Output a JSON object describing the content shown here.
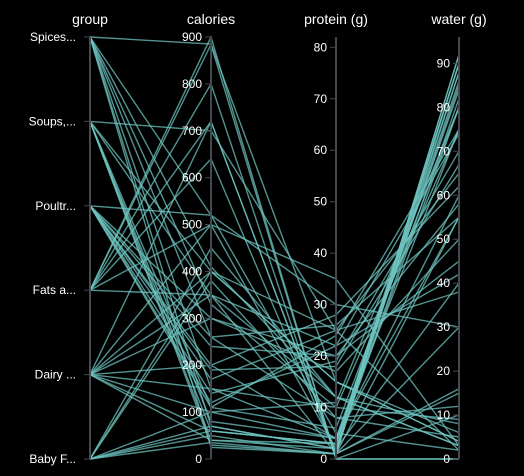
{
  "colors": {
    "background": "#000000",
    "line": "#6ec4c0",
    "axis": "#444a52",
    "text": "#ffffff"
  },
  "chart_data": {
    "type": "parallel-coordinates",
    "dimensions": [
      {
        "key": "group",
        "label": "group",
        "kind": "categorical",
        "categories": [
          "Spices...",
          "Soups,...",
          "Poultr...",
          "Fats a...",
          "Dairy ...",
          "Baby F..."
        ]
      },
      {
        "key": "calories",
        "label": "calories",
        "kind": "numeric",
        "range": [
          0,
          900
        ],
        "ticks": [
          0,
          100,
          200,
          300,
          400,
          500,
          600,
          700,
          800,
          900
        ]
      },
      {
        "key": "protein",
        "label": "protein (g)",
        "kind": "numeric",
        "range": [
          0,
          82
        ],
        "ticks": [
          0,
          10,
          20,
          30,
          40,
          50,
          60,
          70,
          80
        ]
      },
      {
        "key": "water",
        "label": "water (g)",
        "kind": "numeric",
        "range": [
          0,
          96
        ],
        "ticks": [
          0,
          10,
          20,
          30,
          40,
          50,
          60,
          70,
          80,
          90
        ]
      }
    ],
    "rows": [
      {
        "group": "Spices...",
        "calories": 885,
        "protein": 15,
        "water": 6
      },
      {
        "group": "Spices...",
        "calories": 330,
        "protein": 10,
        "water": 9
      },
      {
        "group": "Spices...",
        "calories": 260,
        "protein": 8,
        "water": 12
      },
      {
        "group": "Spices...",
        "calories": 25,
        "protein": 1,
        "water": 92
      },
      {
        "group": "Spices...",
        "calories": 520,
        "protein": 5,
        "water": 2
      },
      {
        "group": "Spices...",
        "calories": 410,
        "protein": 12,
        "water": 8
      },
      {
        "group": "Spices...",
        "calories": 70,
        "protein": 2,
        "water": 80
      },
      {
        "group": "Spices...",
        "calories": 150,
        "protein": 4,
        "water": 55
      },
      {
        "group": "Soups,...",
        "calories": 40,
        "protein": 2,
        "water": 90
      },
      {
        "group": "Soups,...",
        "calories": 60,
        "protein": 3,
        "water": 86
      },
      {
        "group": "Soups,...",
        "calories": 80,
        "protein": 4,
        "water": 84
      },
      {
        "group": "Soups,...",
        "calories": 350,
        "protein": 12,
        "water": 3
      },
      {
        "group": "Soups,...",
        "calories": 700,
        "protein": 25,
        "water": 2
      },
      {
        "group": "Soups,...",
        "calories": 30,
        "protein": 1,
        "water": 92
      },
      {
        "group": "Soups,...",
        "calories": 110,
        "protein": 6,
        "water": 80
      },
      {
        "group": "Soups,...",
        "calories": 400,
        "protein": 15,
        "water": 4
      },
      {
        "group": "Poultr...",
        "calories": 170,
        "protein": 25,
        "water": 65
      },
      {
        "group": "Poultr...",
        "calories": 240,
        "protein": 20,
        "water": 58
      },
      {
        "group": "Poultr...",
        "calories": 120,
        "protein": 22,
        "water": 74
      },
      {
        "group": "Poultr...",
        "calories": 200,
        "protein": 28,
        "water": 62
      },
      {
        "group": "Poultr...",
        "calories": 300,
        "protein": 17,
        "water": 50
      },
      {
        "group": "Poultr...",
        "calories": 140,
        "protein": 19,
        "water": 70
      },
      {
        "group": "Poultr...",
        "calories": 520,
        "protein": 30,
        "water": 30
      },
      {
        "group": "Poultr...",
        "calories": 190,
        "protein": 18,
        "water": 67
      },
      {
        "group": "Poultr...",
        "calories": 110,
        "protein": 24,
        "water": 75
      },
      {
        "group": "Poultr...",
        "calories": 260,
        "protein": 26,
        "water": 55
      },
      {
        "group": "Fats a...",
        "calories": 884,
        "protein": 0,
        "water": 0
      },
      {
        "group": "Fats a...",
        "calories": 720,
        "protein": 1,
        "water": 15
      },
      {
        "group": "Fats a...",
        "calories": 900,
        "protein": 0,
        "water": 0
      },
      {
        "group": "Fats a...",
        "calories": 640,
        "protein": 1,
        "water": 30
      },
      {
        "group": "Fats a...",
        "calories": 500,
        "protein": 2,
        "water": 40
      },
      {
        "group": "Fats a...",
        "calories": 350,
        "protein": 1,
        "water": 55
      },
      {
        "group": "Fats a...",
        "calories": 800,
        "protein": 0,
        "water": 10
      },
      {
        "group": "Dairy ...",
        "calories": 60,
        "protein": 3,
        "water": 88
      },
      {
        "group": "Dairy ...",
        "calories": 400,
        "protein": 25,
        "water": 38
      },
      {
        "group": "Dairy ...",
        "calories": 350,
        "protein": 22,
        "water": 42
      },
      {
        "group": "Dairy ...",
        "calories": 100,
        "protein": 11,
        "water": 80
      },
      {
        "group": "Dairy ...",
        "calories": 200,
        "protein": 4,
        "water": 60
      },
      {
        "group": "Dairy ...",
        "calories": 500,
        "protein": 35,
        "water": 3
      },
      {
        "group": "Dairy ...",
        "calories": 300,
        "protein": 20,
        "water": 45
      },
      {
        "group": "Dairy ...",
        "calories": 150,
        "protein": 10,
        "water": 75
      },
      {
        "group": "Dairy ...",
        "calories": 720,
        "protein": 1,
        "water": 16
      },
      {
        "group": "Dairy ...",
        "calories": 40,
        "protein": 3,
        "water": 90
      },
      {
        "group": "Baby F...",
        "calories": 50,
        "protein": 1,
        "water": 88
      },
      {
        "group": "Baby F...",
        "calories": 70,
        "protein": 2,
        "water": 82
      },
      {
        "group": "Baby F...",
        "calories": 400,
        "protein": 15,
        "water": 4
      },
      {
        "group": "Baby F...",
        "calories": 100,
        "protein": 4,
        "water": 75
      },
      {
        "group": "Baby F...",
        "calories": 450,
        "protein": 12,
        "water": 3
      },
      {
        "group": "Baby F...",
        "calories": 60,
        "protein": 3,
        "water": 85
      },
      {
        "group": "Baby F...",
        "calories": 35,
        "protein": 1,
        "water": 90
      },
      {
        "group": "Baby F...",
        "calories": 380,
        "protein": 8,
        "water": 5
      }
    ]
  }
}
